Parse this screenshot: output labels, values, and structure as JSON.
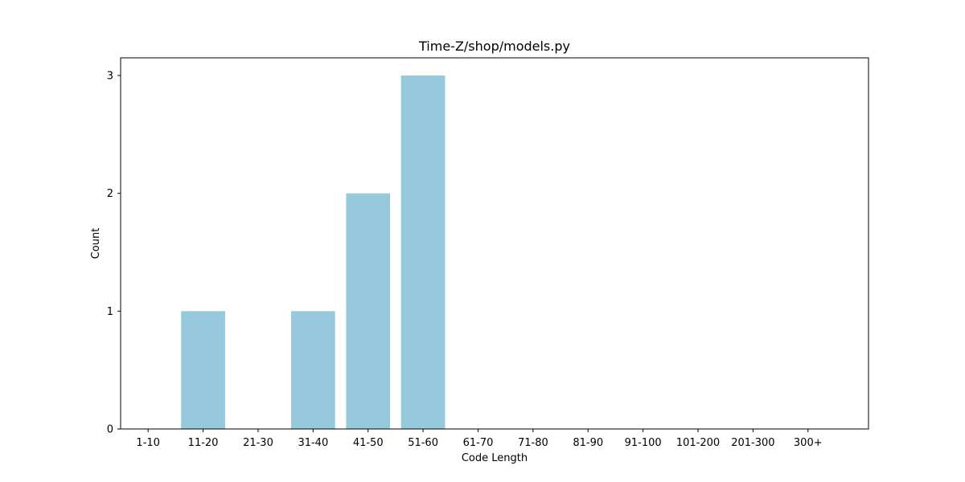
{
  "chart_data": {
    "type": "bar",
    "title": "Time-Z/shop/models.py",
    "xlabel": "Code Length",
    "ylabel": "Count",
    "categories": [
      "1-10",
      "11-20",
      "21-30",
      "31-40",
      "41-50",
      "51-60",
      "61-70",
      "71-80",
      "81-90",
      "91-100",
      "101-200",
      "201-300",
      "300+"
    ],
    "values": [
      0,
      1,
      0,
      1,
      2,
      3,
      0,
      0,
      0,
      0,
      0,
      0,
      0
    ],
    "ylim": [
      0,
      3.15
    ],
    "yticks": [
      0,
      1,
      2,
      3
    ],
    "bar_color": "#96c9dc",
    "grid": false,
    "legend": "none"
  }
}
